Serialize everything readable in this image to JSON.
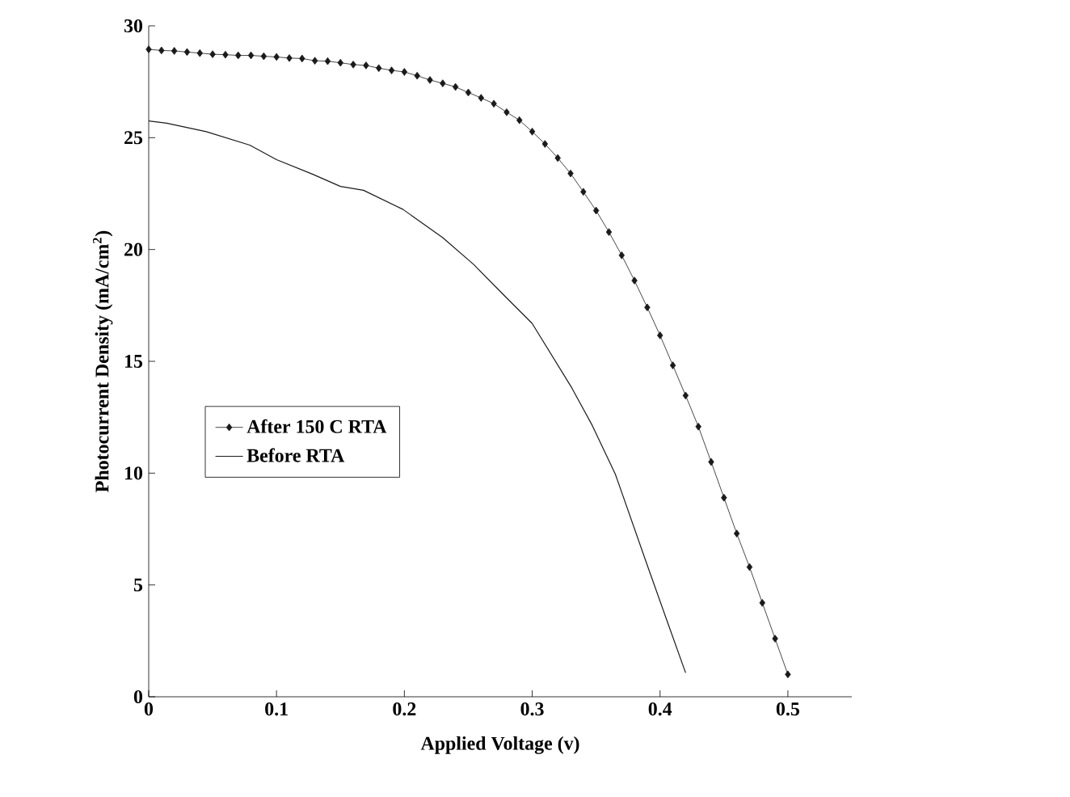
{
  "chart_data": {
    "type": "line",
    "xlabel": "Applied Voltage (v)",
    "ylabel": "Photocurrent Density (mA/cm$^{2}$)",
    "xlim": [
      0,
      0.55
    ],
    "ylim": [
      0,
      30
    ],
    "xticks": [
      0,
      0.1,
      0.2,
      0.3,
      0.4,
      0.5
    ],
    "yticks": [
      0,
      5,
      10,
      15,
      20,
      25,
      30
    ],
    "grid": false,
    "legend": "left",
    "series": [
      {
        "name": "After 150 C RTA",
        "color": "#1a1a1a",
        "marker": "diamond",
        "line_style": "solid",
        "x": [
          0,
          0.01,
          0.02,
          0.03,
          0.04,
          0.05,
          0.06,
          0.07,
          0.08,
          0.09,
          0.1,
          0.11,
          0.12,
          0.13,
          0.14,
          0.15,
          0.16,
          0.17,
          0.18,
          0.19,
          0.2,
          0.21,
          0.22,
          0.23,
          0.24,
          0.25,
          0.26,
          0.27,
          0.28,
          0.29,
          0.3,
          0.31,
          0.32,
          0.33,
          0.34,
          0.35,
          0.36,
          0.37,
          0.38,
          0.39,
          0.4,
          0.41,
          0.42,
          0.43,
          0.44,
          0.45,
          0.46,
          0.47,
          0.48,
          0.49,
          0.5
        ],
        "values": [
          28.95,
          28.9,
          28.88,
          28.83,
          28.78,
          28.73,
          28.71,
          28.68,
          28.68,
          28.64,
          28.61,
          28.56,
          28.54,
          28.44,
          28.42,
          28.35,
          28.27,
          28.23,
          28.11,
          28.01,
          27.94,
          27.77,
          27.58,
          27.43,
          27.27,
          27.02,
          26.78,
          26.52,
          26.14,
          25.78,
          25.27,
          24.72,
          24.09,
          23.4,
          22.58,
          21.74,
          20.78,
          19.74,
          18.61,
          17.41,
          16.16,
          14.82,
          13.47,
          12.08,
          10.5,
          8.9,
          7.3,
          5.8,
          4.2,
          2.6,
          1.0
        ]
      },
      {
        "name": "Before RTA",
        "color": "#1a1a1a",
        "marker": "none",
        "line_style": "solid",
        "x": [
          0,
          0.014,
          0.045,
          0.079,
          0.1,
          0.128,
          0.15,
          0.168,
          0.199,
          0.23,
          0.254,
          0.279,
          0.3,
          0.331,
          0.347,
          0.365,
          0.39,
          0.405,
          0.42
        ],
        "values": [
          25.75,
          25.65,
          25.27,
          24.67,
          24.02,
          23.37,
          22.82,
          22.65,
          21.79,
          20.53,
          19.34,
          17.89,
          16.69,
          13.81,
          12.13,
          9.96,
          5.88,
          3.47,
          1.07
        ]
      }
    ]
  }
}
